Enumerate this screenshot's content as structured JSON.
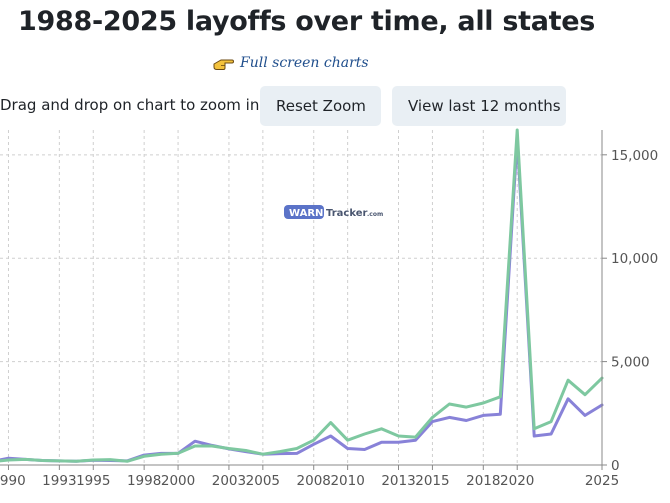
{
  "header": {
    "title": "1988-2025 layoffs over time, all states",
    "fullscreen_label": "Full screen charts",
    "zoom_hint": "Drag and drop on chart to zoom in.",
    "reset_zoom_label": "Reset Zoom",
    "last_12_label": "View last 12 months",
    "link_color": "#1f4e8c",
    "hand_icon": "pointing-hand-icon"
  },
  "watermark": {
    "part1": "WARN",
    "part2": "Tracker",
    "suffix": ".com"
  },
  "chart_data": {
    "type": "line",
    "x": [
      1988,
      1989,
      1990,
      1991,
      1992,
      1993,
      1994,
      1995,
      1996,
      1997,
      1998,
      1999,
      2000,
      2001,
      2002,
      2003,
      2004,
      2005,
      2006,
      2007,
      2008,
      2009,
      2010,
      2011,
      2012,
      2013,
      2014,
      2015,
      2016,
      2017,
      2018,
      2019,
      2020,
      2021,
      2022,
      2023,
      2024,
      2025
    ],
    "xticks": [
      1990,
      1993,
      1995,
      1998,
      2000,
      2003,
      2005,
      2008,
      2010,
      2013,
      2015,
      2018,
      2020,
      2025
    ],
    "xlim": [
      1989.5,
      2025
    ],
    "yticks": [
      0,
      5000,
      10000,
      15000
    ],
    "ytick_labels": [
      "0",
      "5,000",
      "10,000",
      "15,000"
    ],
    "ylim": [
      0,
      16200
    ],
    "grid": true,
    "y_axis_side": "right",
    "series": [
      {
        "color": "#8882d8",
        "values": [
          150,
          160,
          330,
          270,
          220,
          200,
          180,
          230,
          220,
          200,
          480,
          560,
          560,
          1150,
          950,
          780,
          650,
          520,
          550,
          560,
          1000,
          1400,
          800,
          750,
          1100,
          1100,
          1200,
          2100,
          2300,
          2150,
          2400,
          2450,
          15800,
          1400,
          1500,
          3200,
          2400,
          2900
        ]
      },
      {
        "color": "#7ec8a0",
        "values": [
          150,
          160,
          240,
          270,
          220,
          200,
          180,
          240,
          260,
          180,
          420,
          520,
          570,
          920,
          920,
          800,
          700,
          520,
          650,
          800,
          1200,
          2050,
          1200,
          1500,
          1750,
          1400,
          1350,
          2300,
          2950,
          2800,
          3000,
          3300,
          16200,
          1750,
          2100,
          4100,
          3400,
          4200
        ]
      }
    ]
  }
}
